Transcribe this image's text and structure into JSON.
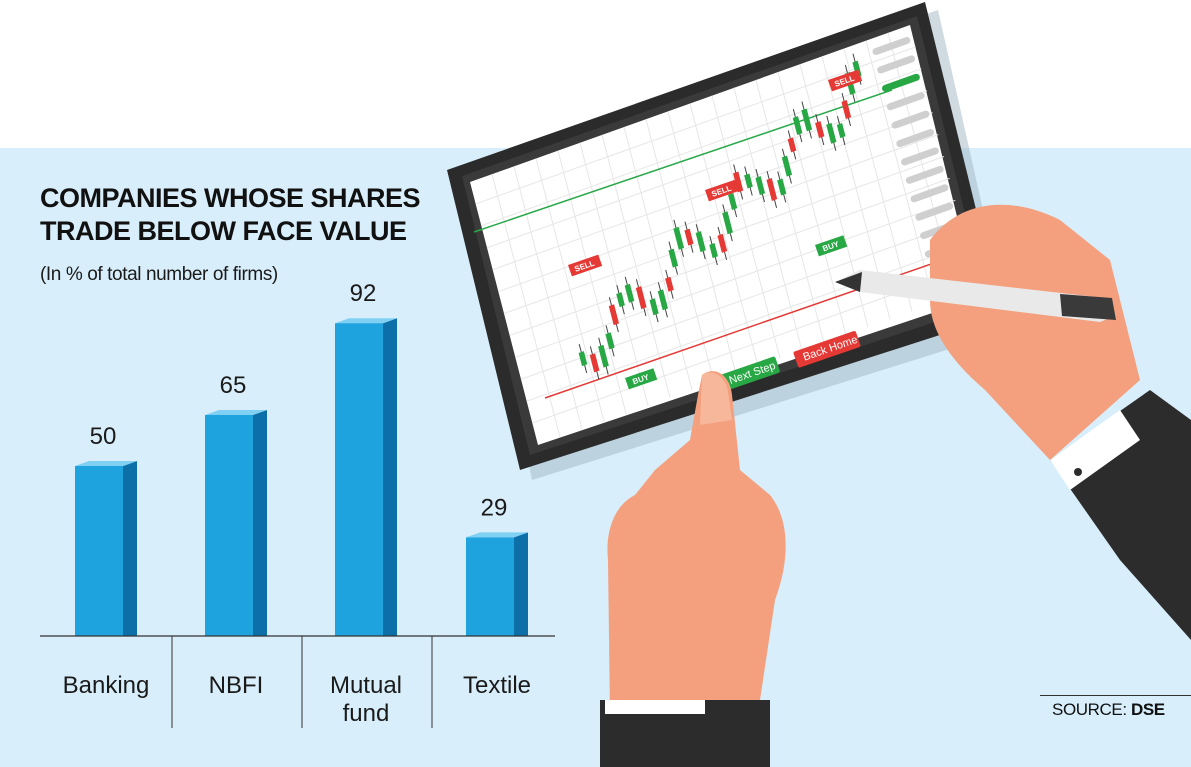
{
  "header": {
    "title_line1": "COMPANIES WHOSE SHARES",
    "title_line2": "TRADE BELOW FACE VALUE",
    "subtitle": "(In % of total number of firms)"
  },
  "source": {
    "label": "SOURCE:",
    "name": "DSE"
  },
  "chart_data": {
    "type": "bar",
    "title": "COMPANIES WHOSE SHARES TRADE BELOW FACE VALUE",
    "subtitle": "(In % of total number of firms)",
    "categories": [
      "Banking",
      "NBFI",
      "Mutual fund",
      "Textile"
    ],
    "category_lines": [
      [
        "Banking"
      ],
      [
        "NBFI"
      ],
      [
        "Mutual",
        "fund"
      ],
      [
        "Textile"
      ]
    ],
    "values": [
      50,
      65,
      92,
      29
    ],
    "value_labels": [
      "50",
      "65",
      "92",
      "29"
    ],
    "ylim": [
      0,
      100
    ],
    "grid": false,
    "legend": "none",
    "colors": {
      "bar_front": "#1ea3df",
      "bar_side": "#0d6fa8",
      "bar_top": "#7fd0f2"
    }
  },
  "tablet": {
    "buttons": {
      "next_step": "Next Step",
      "back_home": "Back Home"
    },
    "tags": {
      "sell": "SELL",
      "buy": "BUY"
    },
    "colors": {
      "up": "#27a844",
      "down": "#e53935",
      "frame": "#2b2b2b",
      "screen": "#ffffff"
    }
  }
}
